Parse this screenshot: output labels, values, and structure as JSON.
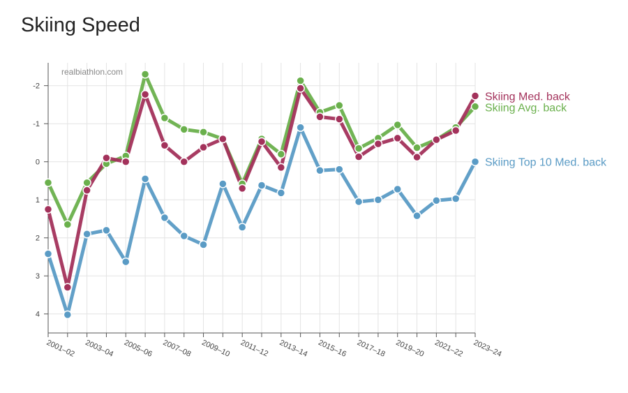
{
  "chart_data": {
    "type": "line",
    "title": "Skiing Speed",
    "watermark": "realbiathlon.com",
    "xlabel": "",
    "ylabel": "",
    "y_reversed": true,
    "ylim": [
      4.5,
      -2.6
    ],
    "yticks": [
      -2,
      -1,
      0,
      1,
      2,
      3,
      4
    ],
    "grid": true,
    "legend": "inline at line ends",
    "x": [
      "2001–02",
      "2002–03",
      "2003–04",
      "2004–05",
      "2005–06",
      "2006–07",
      "2007–08",
      "2008–09",
      "2009–10",
      "2010–11",
      "2011–12",
      "2012–13",
      "2013–14",
      "2014–15",
      "2015–16",
      "2016–17",
      "2017–18",
      "2018–19",
      "2019–20",
      "2020–21",
      "2021–22",
      "2022–23",
      "2023–24"
    ],
    "xtick_labels": [
      "2001–02",
      "",
      "2003–04",
      "",
      "2005–06",
      "",
      "2007–08",
      "",
      "2009–10",
      "",
      "2011–12",
      "",
      "2013–14",
      "",
      "2015–16",
      "",
      "2017–18",
      "",
      "2019–20",
      "",
      "2021–22",
      "",
      "2023–24"
    ],
    "series": [
      {
        "name": "Skiing Avg. back",
        "color": "#6ab04c",
        "values": [
          0.55,
          1.65,
          0.55,
          0.05,
          -0.15,
          -2.3,
          -1.15,
          -0.85,
          -0.78,
          -0.6,
          0.58,
          -0.6,
          -0.2,
          -2.13,
          -1.3,
          -1.48,
          -0.35,
          -0.62,
          -0.97,
          -0.37,
          -0.58,
          -0.9,
          -1.45
        ]
      },
      {
        "name": "Skiing Med. back",
        "color": "#a3325b",
        "values": [
          1.25,
          3.3,
          0.75,
          -0.1,
          0.0,
          -1.77,
          -0.43,
          0.0,
          -0.38,
          -0.6,
          0.7,
          -0.53,
          0.15,
          -1.93,
          -1.18,
          -1.12,
          -0.13,
          -0.47,
          -0.62,
          -0.12,
          -0.58,
          -0.82,
          -1.73
        ]
      },
      {
        "name": "Skiing Top 10 Med. back",
        "color": "#5a9bc5",
        "values": [
          2.42,
          4.02,
          1.9,
          1.8,
          2.63,
          0.45,
          1.47,
          1.95,
          2.18,
          0.58,
          1.72,
          0.62,
          0.82,
          -0.9,
          0.23,
          0.2,
          1.05,
          1.0,
          0.72,
          1.42,
          1.02,
          0.97,
          0.0
        ]
      }
    ]
  }
}
